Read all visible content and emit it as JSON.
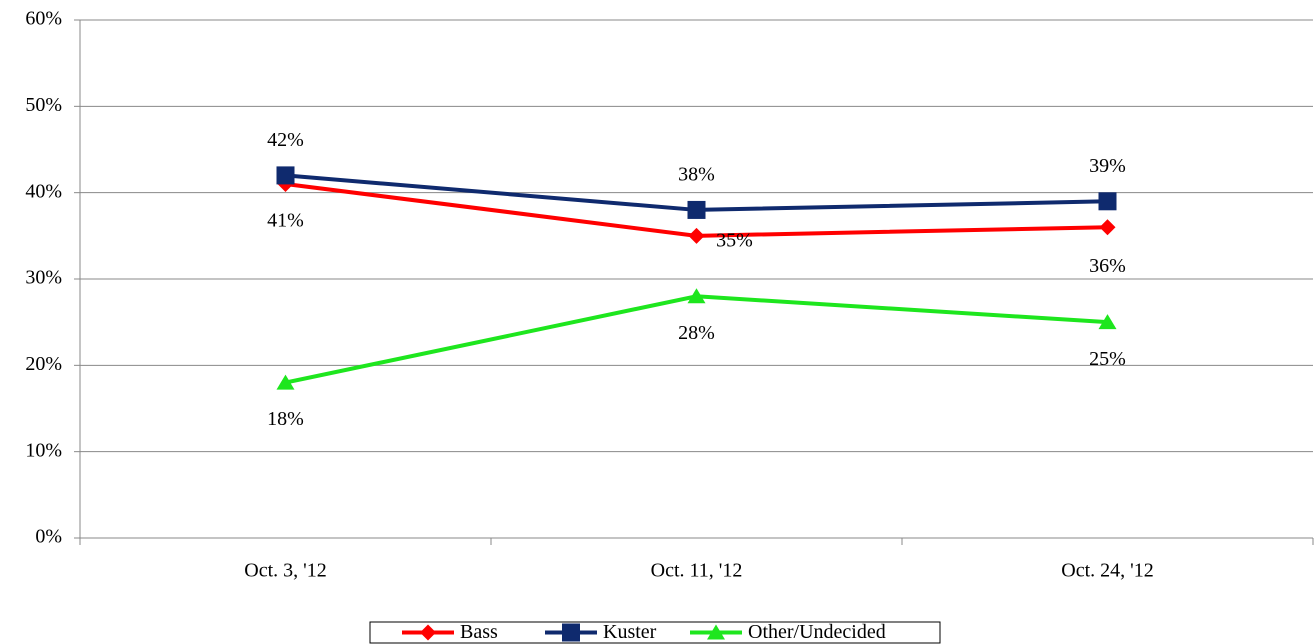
{
  "chart_data": {
    "type": "line",
    "categories": [
      "Oct. 3, '12",
      "Oct. 11, '12",
      "Oct. 24, '12"
    ],
    "series": [
      {
        "name": "Bass",
        "color": "#ff0000",
        "marker": "diamond",
        "values": [
          41,
          35,
          36
        ],
        "value_labels": [
          "41%",
          "35%",
          "36%"
        ]
      },
      {
        "name": "Kuster",
        "color": "#0f2a6e",
        "marker": "square",
        "values": [
          42,
          38,
          39
        ],
        "value_labels": [
          "42%",
          "38%",
          "39%"
        ]
      },
      {
        "name": "Other/Undecided",
        "color": "#1ee61e",
        "marker": "triangle",
        "values": [
          18,
          28,
          25
        ],
        "value_labels": [
          "18%",
          "28%",
          "25%"
        ]
      }
    ],
    "ylim": [
      0,
      60
    ],
    "yticks": [
      {
        "value": 0,
        "label": "0%"
      },
      {
        "value": 10,
        "label": "10%"
      },
      {
        "value": 20,
        "label": "20%"
      },
      {
        "value": 30,
        "label": "30%"
      },
      {
        "value": 40,
        "label": "40%"
      },
      {
        "value": 50,
        "label": "50%"
      },
      {
        "value": 60,
        "label": "60%"
      }
    ],
    "grid": true,
    "legend": "bottom"
  }
}
